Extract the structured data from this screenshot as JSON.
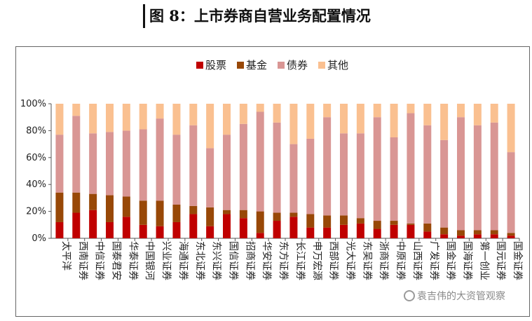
{
  "title": "图 8：上市券商自营业务配置情况",
  "watermark": "袁吉伟的大资管观察",
  "chart_data": {
    "type": "bar",
    "stacked": true,
    "percent": true,
    "categories": [
      "太平洋",
      "西南证券",
      "中信证券",
      "国泰君安",
      "华泰证券",
      "中国银河",
      "兴业证券",
      "海通证券",
      "东北证券",
      "东兴证券",
      "国信证券",
      "招商证券",
      "华安证券",
      "东方证券",
      "长江证券",
      "申万宏源",
      "西部证券",
      "光大证券",
      "东吴证券",
      "浙商证券",
      "中原证券",
      "山西证券",
      "广发证券",
      "国金证券",
      "国海证券",
      "第一创业",
      "国元证券",
      "国金证券"
    ],
    "series": [
      {
        "name": "股票",
        "color": "#c00000",
        "values": [
          12,
          19,
          21,
          12,
          16,
          10,
          9,
          12,
          18,
          9,
          18,
          15,
          4,
          13,
          16,
          8,
          8,
          10,
          11,
          7,
          10,
          10,
          5,
          3,
          2,
          3,
          3,
          2
        ]
      },
      {
        "name": "基金",
        "color": "#984807",
        "values": [
          22,
          15,
          12,
          20,
          15,
          18,
          19,
          13,
          6,
          14,
          3,
          6,
          16,
          6,
          3,
          10,
          9,
          7,
          4,
          6,
          3,
          1,
          6,
          5,
          4,
          3,
          3,
          2
        ]
      },
      {
        "name": "债券",
        "color": "#d99694",
        "values": [
          43,
          57,
          45,
          47,
          49,
          53,
          61,
          52,
          60,
          44,
          56,
          64,
          74,
          67,
          51,
          56,
          73,
          61,
          63,
          77,
          62,
          82,
          73,
          65,
          84,
          78,
          80,
          60
        ]
      },
      {
        "name": "其他",
        "color": "#fac090",
        "values": [
          23,
          9,
          22,
          21,
          20,
          19,
          11,
          23,
          16,
          33,
          23,
          15,
          6,
          14,
          30,
          26,
          10,
          22,
          22,
          10,
          25,
          7,
          16,
          27,
          10,
          16,
          14,
          36
        ]
      }
    ],
    "ylim": [
      0,
      100
    ],
    "yticks": [
      "0%",
      "20%",
      "40%",
      "60%",
      "80%",
      "100%"
    ],
    "legend_position": "top-center",
    "grid": false
  }
}
